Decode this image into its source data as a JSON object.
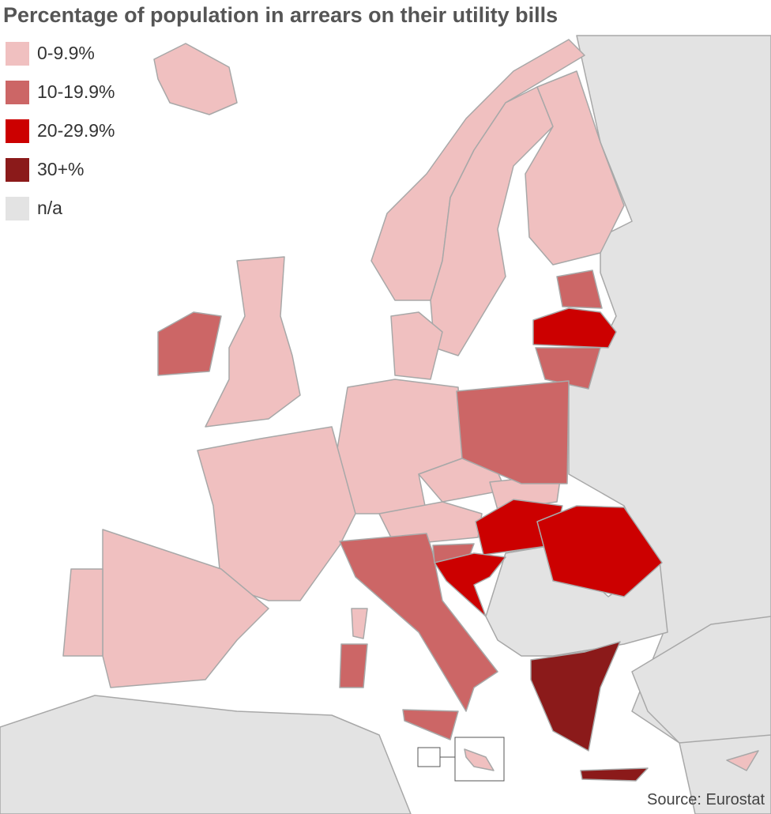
{
  "title": "Percentage of population in arrears on their utility bills",
  "legend": [
    {
      "label": "0-9.9%",
      "color": "#f0c0c0"
    },
    {
      "label": "10-19.9%",
      "color": "#cc6666"
    },
    {
      "label": "20-29.9%",
      "color": "#cc0000"
    },
    {
      "label": "30+%",
      "color": "#8b1a1a"
    },
    {
      "label": "n/a",
      "color": "#e3e3e3"
    }
  ],
  "source": "Source: Eurostat"
}
